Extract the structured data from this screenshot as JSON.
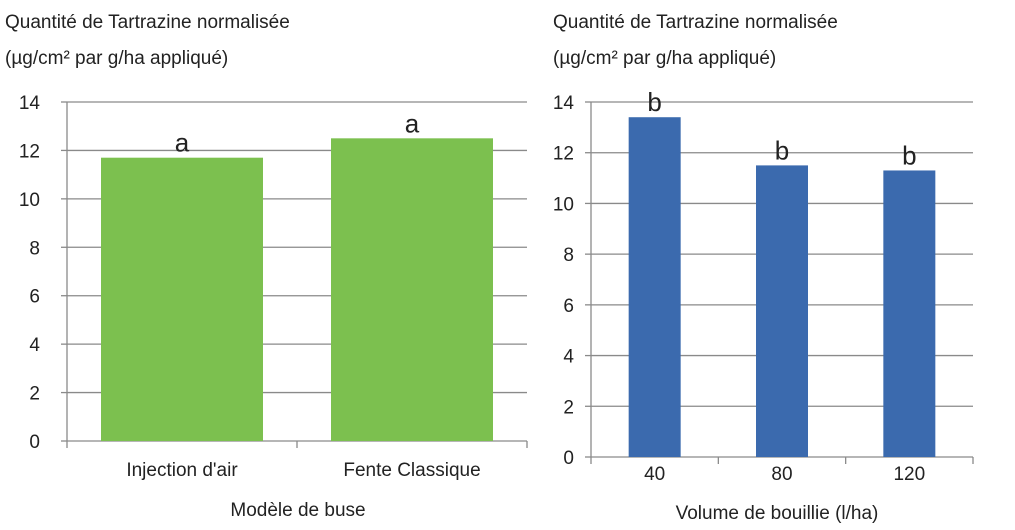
{
  "chart_data": [
    {
      "type": "bar",
      "title": "Quantité de Tartrazine normalisée",
      "subtitle": "(µg/cm² par g/ha appliqué)",
      "xlabel": "Modèle de buse",
      "ylabel": "",
      "categories": [
        "Injection d'air",
        "Fente Classique"
      ],
      "values": [
        11.7,
        12.5
      ],
      "data_labels": [
        "a",
        "a"
      ],
      "ylim": [
        0,
        14
      ],
      "yticks": [
        0,
        2,
        4,
        6,
        8,
        10,
        12,
        14
      ],
      "grid": true,
      "legend": "none",
      "color": "#7cc04f"
    },
    {
      "type": "bar",
      "title": "Quantité de Tartrazine normalisée",
      "subtitle": "(µg/cm² par g/ha appliqué)",
      "xlabel": "Volume de bouillie (l/ha)",
      "ylabel": "",
      "categories": [
        "40",
        "80",
        "120"
      ],
      "values": [
        13.4,
        11.5,
        11.3
      ],
      "data_labels": [
        "b",
        "b",
        "b"
      ],
      "ylim": [
        0,
        14
      ],
      "yticks": [
        0,
        2,
        4,
        6,
        8,
        10,
        12,
        14
      ],
      "grid": true,
      "legend": "none",
      "color": "#3b6aae"
    }
  ]
}
